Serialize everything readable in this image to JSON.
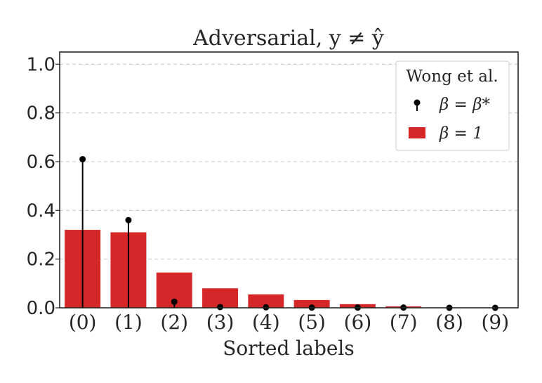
{
  "chart_data": {
    "type": "bar",
    "title": "Adversarial, y ≠ ŷ",
    "xlabel": "Sorted labels",
    "ylabel": "",
    "ylim": [
      0,
      1.05
    ],
    "yticks": [
      "0.0",
      "0.2",
      "0.4",
      "0.6",
      "0.8",
      "1.0"
    ],
    "ytick_values": [
      0,
      0.2,
      0.4,
      0.6,
      0.8,
      1.0
    ],
    "grid": "horizontal dashed",
    "categories": [
      "(0)",
      "(1)",
      "(2)",
      "(3)",
      "(4)",
      "(5)",
      "(6)",
      "(7)",
      "(8)",
      "(9)"
    ],
    "series": [
      {
        "name": "β = 1",
        "kind": "bar",
        "color": "#d62728",
        "values": [
          0.32,
          0.31,
          0.145,
          0.08,
          0.055,
          0.032,
          0.015,
          0.006,
          0.001,
          0.0
        ]
      },
      {
        "name": "β = β*",
        "kind": "stem",
        "color": "#000000",
        "values": [
          0.61,
          0.36,
          0.025,
          0.003,
          0.002,
          0.001,
          0.001,
          0.001,
          0.0,
          0.0
        ]
      }
    ],
    "legend": {
      "title": "Wong et al.",
      "position": "top-right"
    }
  }
}
